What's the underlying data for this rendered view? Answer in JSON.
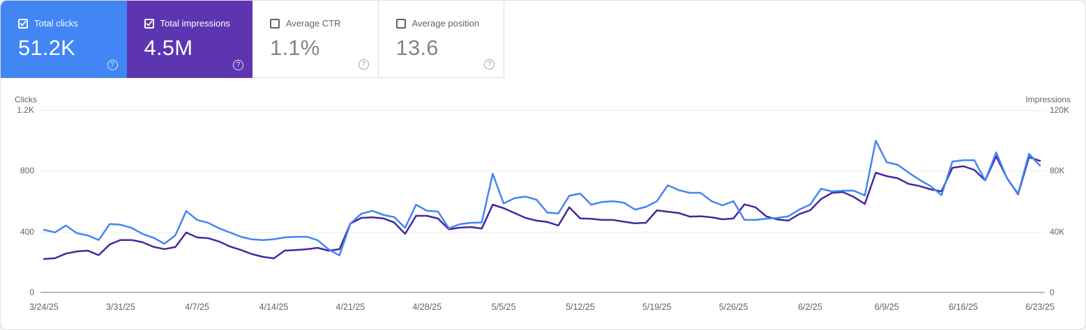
{
  "cards": [
    {
      "label": "Total clicks",
      "value": "51.2K",
      "checked": true,
      "bg": "#4285f4"
    },
    {
      "label": "Total impressions",
      "value": "4.5M",
      "checked": true,
      "bg": "#5e35b1"
    },
    {
      "label": "Average CTR",
      "value": "1.1%",
      "checked": false,
      "bg": "#ffffff"
    },
    {
      "label": "Average position",
      "value": "13.6",
      "checked": false,
      "bg": "#ffffff"
    }
  ],
  "icons": {
    "help": "?"
  },
  "colors": {
    "clicks_line": "#4285f4",
    "impressions_line": "#4527a0",
    "clicks_card": "#4285f4",
    "impressions_card": "#5e35b1",
    "axis_text": "#5f6368",
    "gridline": "#ecedef",
    "zero_line": "#b3b7bb"
  },
  "chart_data": {
    "type": "line",
    "left_axis": {
      "label": "Clicks",
      "ticks_top_down": [
        "1.2K",
        "800",
        "400",
        "0"
      ],
      "max": 1200
    },
    "right_axis": {
      "label": "Impressions",
      "ticks_top_down": [
        "120K",
        "80K",
        "40K",
        "0"
      ],
      "max": 120000
    },
    "x_labels": [
      "3/24/25",
      "3/31/25",
      "4/7/25",
      "4/14/25",
      "4/21/25",
      "4/28/25",
      "5/5/25",
      "5/12/25",
      "5/19/25",
      "5/26/25",
      "6/2/25",
      "6/9/25",
      "6/16/25",
      "6/23/25"
    ],
    "x_label_day_index": [
      0,
      7,
      14,
      21,
      28,
      35,
      42,
      49,
      56,
      63,
      70,
      77,
      84,
      91
    ],
    "grid": true,
    "legend": "none",
    "series": [
      {
        "name": "Total clicks",
        "axis": "left",
        "color": "#4285f4",
        "values": [
          412,
          395,
          440,
          390,
          375,
          345,
          450,
          445,
          425,
          385,
          360,
          320,
          375,
          535,
          477,
          458,
          422,
          394,
          366,
          349,
          344,
          350,
          362,
          366,
          366,
          344,
          284,
          243,
          453,
          518,
          537,
          510,
          495,
          425,
          577,
          537,
          532,
          421,
          449,
          458,
          460,
          780,
          585,
          620,
          630,
          610,
          525,
          520,
          636,
          650,
          577,
          595,
          600,
          590,
          545,
          563,
          600,
          705,
          673,
          655,
          655,
          600,
          573,
          600,
          477,
          477,
          485,
          490,
          500,
          545,
          577,
          682,
          664,
          669,
          669,
          637,
          998,
          856,
          840,
          788,
          740,
          700,
          640,
          861,
          870,
          870,
          737,
          921,
          750,
          650,
          912,
          834
        ]
      },
      {
        "name": "Total impressions",
        "axis": "right",
        "color": "#4527a0",
        "values": [
          22000,
          22500,
          25500,
          27000,
          27500,
          24500,
          31500,
          34500,
          34500,
          33000,
          30000,
          28500,
          29800,
          39400,
          36200,
          35700,
          33500,
          30200,
          27900,
          25200,
          23400,
          22400,
          27500,
          27900,
          28400,
          29300,
          27500,
          28400,
          45300,
          49000,
          49400,
          48700,
          46000,
          38500,
          50400,
          50400,
          48600,
          41500,
          42600,
          43000,
          42000,
          57700,
          55400,
          52200,
          49000,
          47200,
          46300,
          44000,
          56000,
          48700,
          48400,
          47700,
          47700,
          46500,
          45500,
          45800,
          54000,
          53100,
          52200,
          49900,
          50100,
          49400,
          48100,
          48700,
          57900,
          56000,
          50000,
          48000,
          47200,
          51500,
          54000,
          61400,
          65500,
          66000,
          62800,
          58200,
          78800,
          76500,
          75100,
          71400,
          70000,
          67800,
          66500,
          82000,
          83000,
          80600,
          73700,
          89500,
          75100,
          64600,
          89000,
          86500
        ]
      }
    ]
  }
}
